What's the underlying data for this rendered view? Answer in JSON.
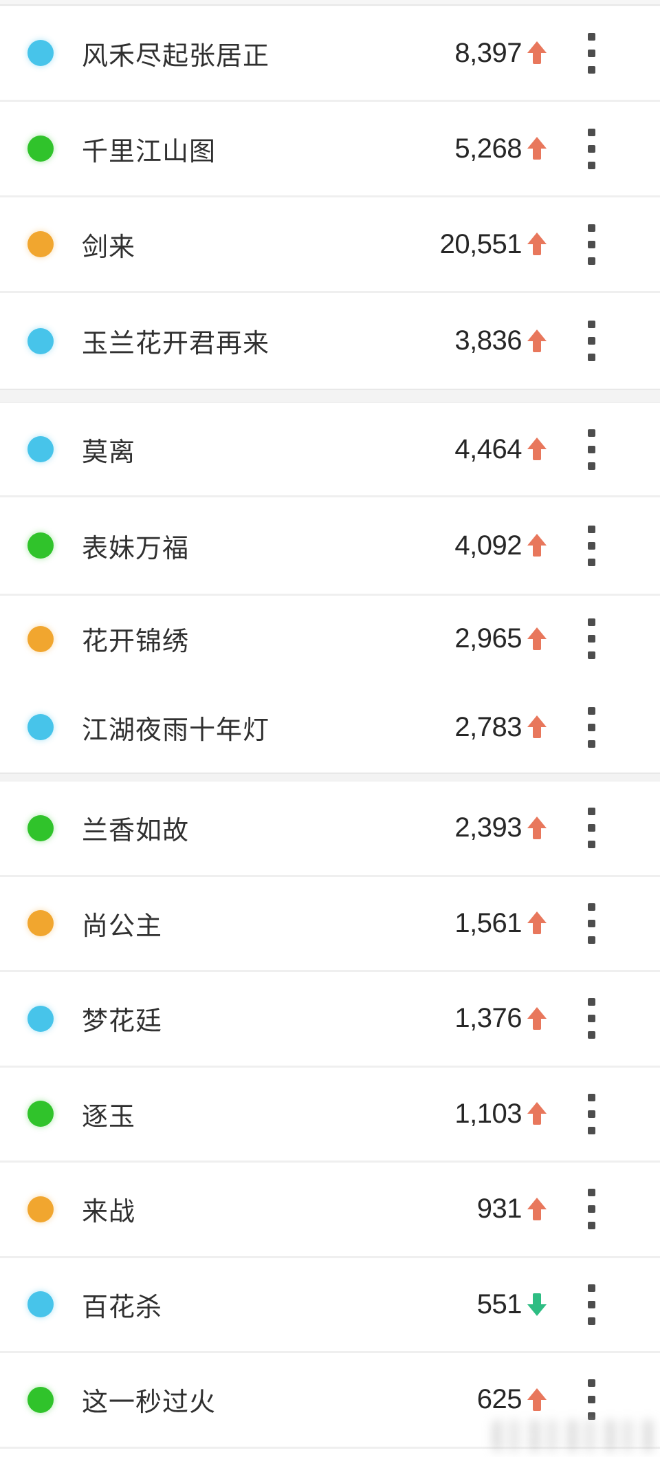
{
  "colors": {
    "dot_blue": "#47C4EA",
    "dot_green": "#30C32B",
    "dot_orange": "#F1A62F",
    "trend_up_arrow": "#E8775C",
    "trend_down_arrow": "#2EBD83",
    "divider": "#EFEFEF",
    "section_gap": "#F3F3F3",
    "title_text": "#303030",
    "value_text": "#262626",
    "more_icon": "#4D4D4D"
  },
  "icons": {
    "more": "vertical-ellipsis-menu",
    "trend_up": "solid-up-arrow",
    "trend_down": "solid-down-arrow",
    "dot": "colored-status-dot",
    "watermark": "blurred-text-watermark"
  },
  "list": {
    "sections": [
      [
        0,
        1,
        2,
        3
      ],
      [
        4,
        5,
        6,
        7
      ],
      [
        8,
        9,
        10,
        11,
        12,
        13,
        14
      ]
    ],
    "flush_after": [
      6
    ],
    "rows": [
      {
        "title": "风禾尽起张居正",
        "value": "8,397",
        "trend": "up",
        "dot": "blue"
      },
      {
        "title": "千里江山图",
        "value": "5,268",
        "trend": "up",
        "dot": "green"
      },
      {
        "title": "剑来",
        "value": "20,551",
        "trend": "up",
        "dot": "orange"
      },
      {
        "title": "玉兰花开君再来",
        "value": "3,836",
        "trend": "up",
        "dot": "blue"
      },
      {
        "title": "莫离",
        "value": "4,464",
        "trend": "up",
        "dot": "blue"
      },
      {
        "title": "表妹万福",
        "value": "4,092",
        "trend": "up",
        "dot": "green"
      },
      {
        "title": "花开锦绣",
        "value": "2,965",
        "trend": "up",
        "dot": "orange"
      },
      {
        "title": "江湖夜雨十年灯",
        "value": "2,783",
        "trend": "up",
        "dot": "blue"
      },
      {
        "title": "兰香如故",
        "value": "2,393",
        "trend": "up",
        "dot": "green"
      },
      {
        "title": "尚公主",
        "value": "1,561",
        "trend": "up",
        "dot": "orange"
      },
      {
        "title": "梦花廷",
        "value": "1,376",
        "trend": "up",
        "dot": "blue"
      },
      {
        "title": "逐玉",
        "value": "1,103",
        "trend": "up",
        "dot": "green"
      },
      {
        "title": "来战",
        "value": "931",
        "trend": "up",
        "dot": "orange"
      },
      {
        "title": "百花杀",
        "value": "551",
        "trend": "down",
        "dot": "blue"
      },
      {
        "title": "这一秒过火",
        "value": "625",
        "trend": "up",
        "dot": "green"
      }
    ]
  }
}
